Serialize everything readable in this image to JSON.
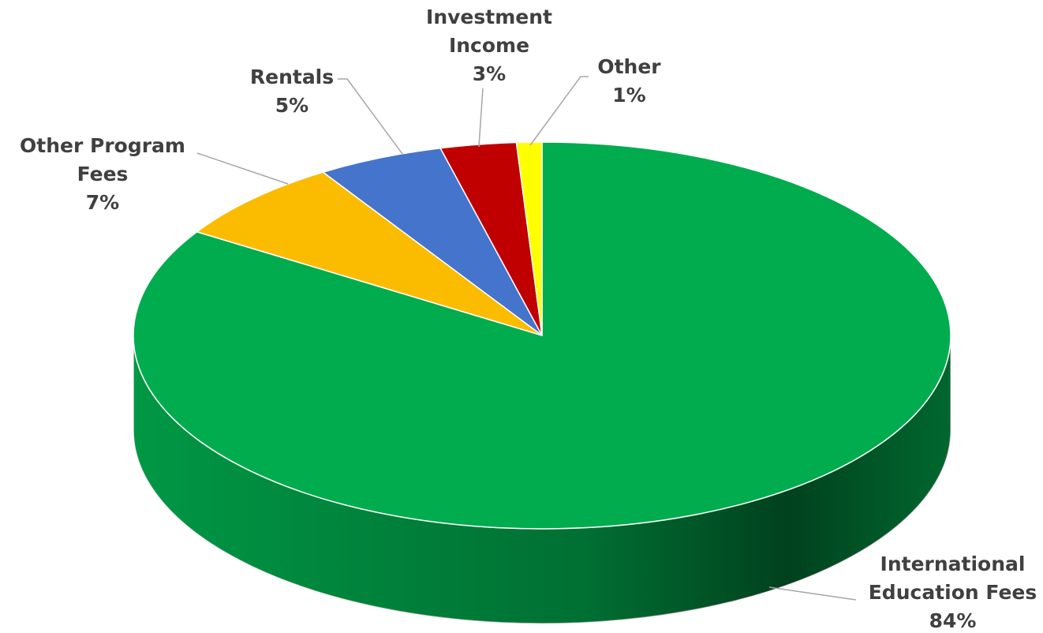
{
  "chart_data": {
    "type": "pie",
    "categories": [
      "International Education Fees",
      "Other Program Fees",
      "Rentals",
      "Investment Income",
      "Other"
    ],
    "values": [
      84,
      7,
      5,
      3,
      1
    ],
    "value_labels": [
      "84%",
      "7%",
      "5%",
      "3%",
      "1%"
    ],
    "colors": [
      "#00ac4e",
      "#fbbc00",
      "#4574cc",
      "#c00000",
      "#ffff00"
    ]
  }
}
